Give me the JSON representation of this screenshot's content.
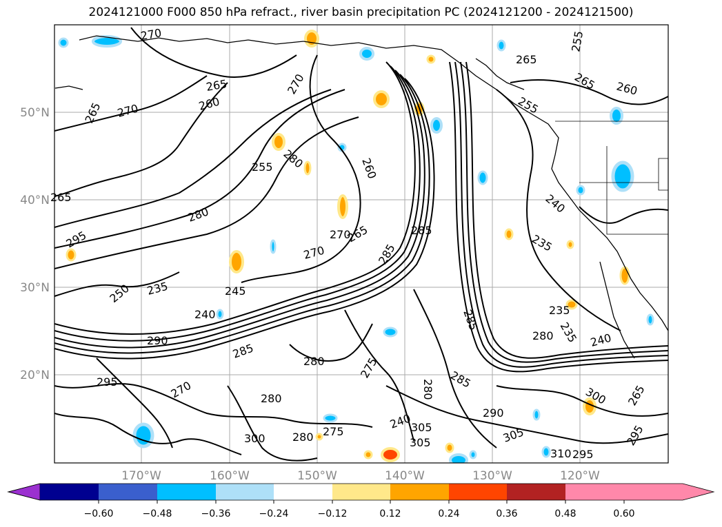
{
  "title": "2024121000 F000 850 hPa refract., river basin precipitation PC (2024121200 - 2024121500)",
  "lat_labels": [
    "50°N",
    "40°N",
    "30°N",
    "20°N"
  ],
  "lon_labels": [
    "170°W",
    "160°W",
    "150°W",
    "140°W",
    "130°W",
    "120°W"
  ],
  "contour_labels": [
    "270",
    "265",
    "260",
    "270",
    "265",
    "255",
    "265",
    "265",
    "260",
    "255",
    "265",
    "270",
    "285",
    "285",
    "255",
    "270",
    "265",
    "260",
    "280",
    "240",
    "235",
    "250",
    "235",
    "245",
    "240",
    "290",
    "285",
    "280",
    "275",
    "295",
    "280",
    "270",
    "280",
    "275",
    "300",
    "305",
    "305",
    "285",
    "290",
    "300",
    "305",
    "310",
    "295",
    "240",
    "235",
    "235",
    "240",
    "280",
    "265",
    "295",
    "295",
    "270",
    "285",
    "280",
    "280"
  ],
  "colorbar": {
    "ticks": [
      "−0.60",
      "−0.48",
      "−0.36",
      "−0.24",
      "−0.12",
      "0.12",
      "0.24",
      "0.36",
      "0.48",
      "0.60"
    ],
    "colors": [
      "#9b30d0",
      "#000090",
      "#3a5fcd",
      "#00bfff",
      "#aee0f8",
      "#ffffff",
      "#ffe88a",
      "#ffa500",
      "#ff4500",
      "#b22222",
      "#ff88aa"
    ]
  }
}
